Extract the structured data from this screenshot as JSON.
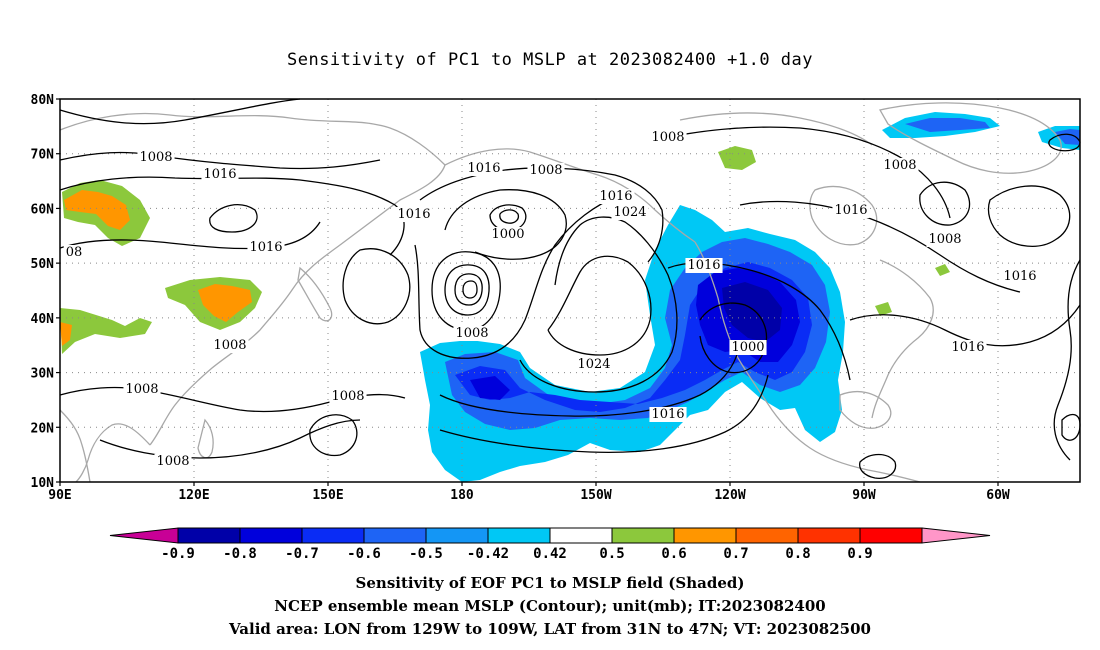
{
  "title": "Sensitivity of PC1 to MSLP at 2023082400 +1.0 day",
  "lat_labels": [
    "80N",
    "70N",
    "60N",
    "50N",
    "40N",
    "30N",
    "20N",
    "10N"
  ],
  "lon_labels": [
    "90E",
    "120E",
    "150E",
    "180",
    "150W",
    "120W",
    "90W",
    "60W"
  ],
  "contour_labels": [
    "1008",
    "1016",
    "1008",
    "1016",
    "1008",
    "1008",
    "1016",
    "1024",
    "1016",
    "1000",
    "1016",
    "1008",
    "1008",
    "1016",
    "1008",
    "1016",
    "1000",
    "1008",
    "1016",
    "1016",
    "1024",
    "1008",
    "1008",
    "1016",
    "1016",
    "1008",
    "08",
    "1008"
  ],
  "colorbar": {
    "tick_labels": [
      "-0.9",
      "-0.8",
      "-0.7",
      "-0.6",
      "-0.5",
      "-0.42",
      "0.42",
      "0.5",
      "0.6",
      "0.7",
      "0.8",
      "0.9"
    ],
    "colors": [
      "#0000a8",
      "#0000dc",
      "#0a2cf5",
      "#1e64f5",
      "#1496f5",
      "#00c8f5",
      "#ffffff",
      "#8cc83c",
      "#ff9600",
      "#ff6400",
      "#ff3200",
      "#ff0000"
    ],
    "low_end_color": "#c80096",
    "high_end_color": "#ff96c8"
  },
  "captions": [
    "Sensitivity of EOF PC1 to MSLP field (Shaded)",
    "NCEP ensemble mean MSLP (Contour); unit(mb); IT:2023082400",
    "Valid area: LON from 129W to 109W, LAT from 31N to 47N; VT: 2023082500"
  ]
}
